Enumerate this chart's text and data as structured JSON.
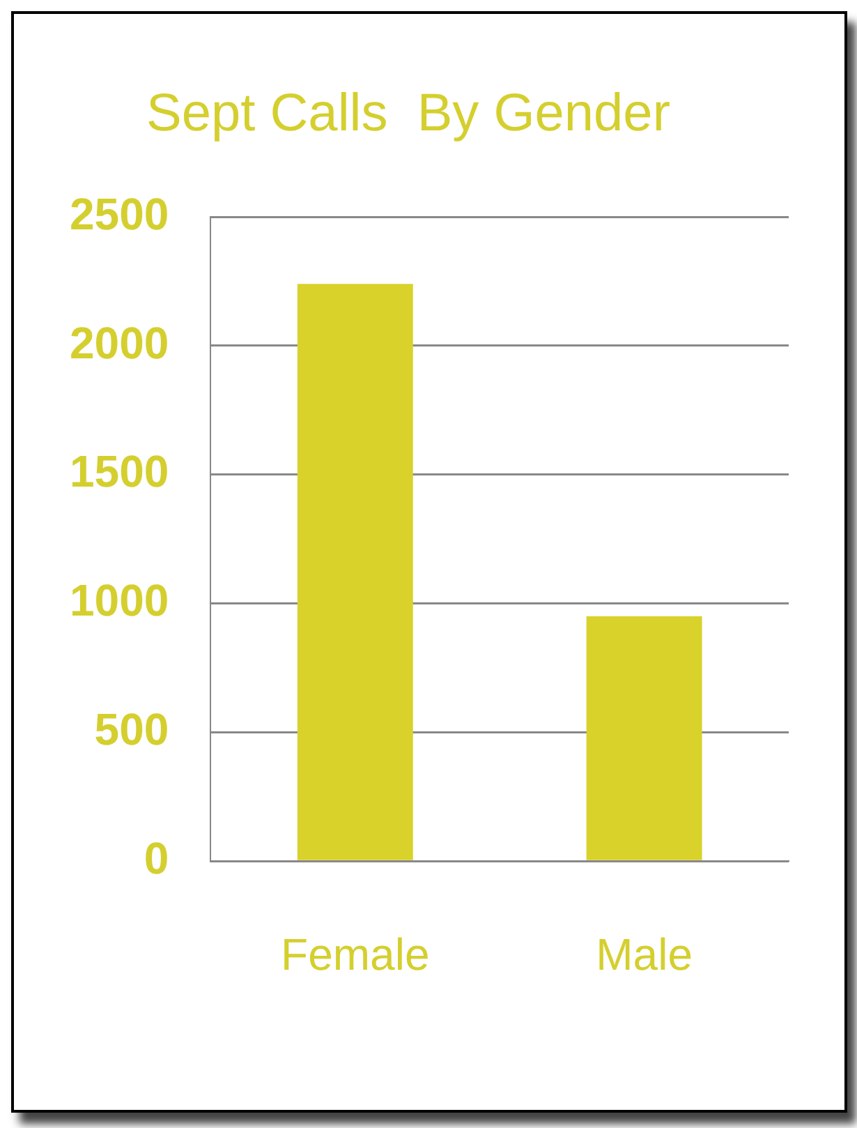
{
  "chart_data": {
    "type": "bar",
    "title": "Sept Calls  By Gender",
    "categories": [
      "Female",
      "Male"
    ],
    "values": [
      2240,
      950
    ],
    "color": "#d8d22b",
    "ylim": [
      0,
      2500
    ],
    "yticks": [
      0,
      500,
      1000,
      1500,
      2000,
      2500
    ],
    "grid": "y"
  }
}
